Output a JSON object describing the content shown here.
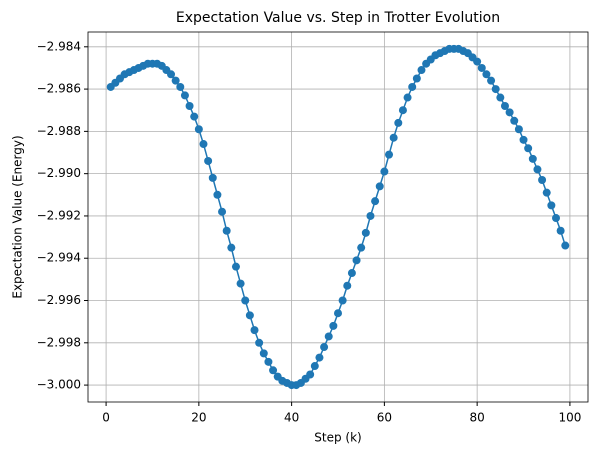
{
  "chart_data": {
    "type": "line",
    "title": "Expectation Value vs. Step in Trotter Evolution",
    "xlabel": "Step (k)",
    "ylabel": "Expectation Value (Energy)",
    "x": [
      1,
      2,
      3,
      4,
      5,
      6,
      7,
      8,
      9,
      10,
      11,
      12,
      13,
      14,
      15,
      16,
      17,
      18,
      19,
      20,
      21,
      22,
      23,
      24,
      25,
      26,
      27,
      28,
      29,
      30,
      31,
      32,
      33,
      34,
      35,
      36,
      37,
      38,
      39,
      40,
      41,
      42,
      43,
      44,
      45,
      46,
      47,
      48,
      49,
      50,
      51,
      52,
      53,
      54,
      55,
      56,
      57,
      58,
      59,
      60,
      61,
      62,
      63,
      64,
      65,
      66,
      67,
      68,
      69,
      70,
      71,
      72,
      73,
      74,
      75,
      76,
      77,
      78,
      79,
      80,
      81,
      82,
      83,
      84,
      85,
      86,
      87,
      88,
      89,
      90,
      91,
      92,
      93,
      94,
      95,
      96,
      97,
      98,
      99
    ],
    "series": [
      {
        "name": "Expectation Value",
        "color": "#1f77b4",
        "values": [
          -2.9859,
          -2.9857,
          -2.9855,
          -2.9853,
          -2.9852,
          -2.9851,
          -2.985,
          -2.9849,
          -2.9848,
          -2.9848,
          -2.9848,
          -2.9849,
          -2.9851,
          -2.9853,
          -2.9856,
          -2.9859,
          -2.9863,
          -2.9868,
          -2.9873,
          -2.9879,
          -2.9886,
          -2.9894,
          -2.9902,
          -2.991,
          -2.9918,
          -2.9927,
          -2.9935,
          -2.9944,
          -2.9952,
          -2.996,
          -2.9967,
          -2.9974,
          -2.998,
          -2.9985,
          -2.9989,
          -2.9993,
          -2.9996,
          -2.9998,
          -2.9999,
          -3.0,
          -3.0,
          -2.9999,
          -2.9997,
          -2.9995,
          -2.9991,
          -2.9987,
          -2.9982,
          -2.9977,
          -2.9972,
          -2.9966,
          -2.996,
          -2.9953,
          -2.9947,
          -2.9941,
          -2.9935,
          -2.9928,
          -2.992,
          -2.9913,
          -2.9906,
          -2.9899,
          -2.9891,
          -2.9883,
          -2.9876,
          -2.987,
          -2.9864,
          -2.9859,
          -2.9855,
          -2.9851,
          -2.9848,
          -2.9846,
          -2.9844,
          -2.9843,
          -2.9842,
          -2.9841,
          -2.9841,
          -2.9841,
          -2.9842,
          -2.9843,
          -2.9845,
          -2.9847,
          -2.985,
          -2.9853,
          -2.9856,
          -2.986,
          -2.9864,
          -2.9868,
          -2.9871,
          -2.9875,
          -2.9879,
          -2.9884,
          -2.9888,
          -2.9893,
          -2.9898,
          -2.9903,
          -2.9909,
          -2.9915,
          -2.9921,
          -2.9927,
          -2.9934
        ]
      }
    ],
    "xlim": [
      -3.9,
      103.9
    ],
    "ylim": [
      -3.0008,
      -2.9833
    ],
    "xticks": [
      0,
      20,
      40,
      60,
      80,
      100
    ],
    "yticks": [
      {
        "value": -3.0,
        "label": "−3.000"
      },
      {
        "value": -2.998,
        "label": "−2.998"
      },
      {
        "value": -2.996,
        "label": "−2.996"
      },
      {
        "value": -2.994,
        "label": "−2.994"
      },
      {
        "value": -2.992,
        "label": "−2.992"
      },
      {
        "value": -2.99,
        "label": "−2.990"
      },
      {
        "value": -2.988,
        "label": "−2.988"
      },
      {
        "value": -2.986,
        "label": "−2.986"
      },
      {
        "value": -2.984,
        "label": "−2.984"
      }
    ],
    "grid": true
  }
}
